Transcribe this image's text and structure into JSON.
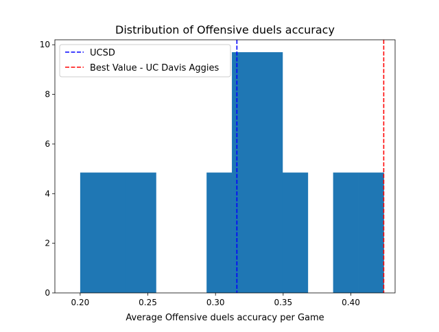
{
  "chart_data": {
    "type": "bar",
    "title": "Distribution of Offensive duels accuracy",
    "xlabel": "Average Offensive duels accuracy per Game",
    "ylabel": "",
    "xlim": [
      0.1813,
      0.4327
    ],
    "ylim": [
      0,
      10.2
    ],
    "x_ticks": [
      0.2,
      0.25,
      0.3,
      0.35,
      0.4
    ],
    "x_tick_labels": [
      "0.20",
      "0.25",
      "0.30",
      "0.35",
      "0.40"
    ],
    "y_ticks": [
      0,
      2,
      4,
      6,
      8,
      10
    ],
    "y_tick_labels": [
      "0",
      "2",
      "4",
      "6",
      "8",
      "10"
    ],
    "grid": false,
    "bar_color": "#1f77b4",
    "bins": [
      {
        "x0": 0.2,
        "x1": 0.2112,
        "value": 4.85
      },
      {
        "x0": 0.2112,
        "x1": 0.2224,
        "value": 4.85
      },
      {
        "x0": 0.2224,
        "x1": 0.2336,
        "value": 4.85
      },
      {
        "x0": 0.2336,
        "x1": 0.2448,
        "value": 4.85
      },
      {
        "x0": 0.2448,
        "x1": 0.256,
        "value": 4.85
      },
      {
        "x0": 0.2934,
        "x1": 0.3121,
        "value": 4.85
      },
      {
        "x0": 0.3121,
        "x1": 0.3308,
        "value": 9.7
      },
      {
        "x0": 0.3308,
        "x1": 0.3495,
        "value": 9.7
      },
      {
        "x0": 0.3495,
        "x1": 0.3682,
        "value": 4.85
      },
      {
        "x0": 0.3869,
        "x1": 0.4056,
        "value": 4.85
      },
      {
        "x0": 0.4056,
        "x1": 0.4243,
        "value": 4.85
      }
    ],
    "reference_lines": [
      {
        "name": "UCSD",
        "x": 0.3158,
        "color": "#0000ff",
        "style": "dashed"
      },
      {
        "name": "Best Value - UC Davis Aggies",
        "x": 0.4243,
        "color": "#ff0000",
        "style": "dashed"
      }
    ],
    "legend": {
      "placement": "top-left",
      "entries": [
        "UCSD",
        "Best Value - UC Davis Aggies"
      ]
    }
  }
}
